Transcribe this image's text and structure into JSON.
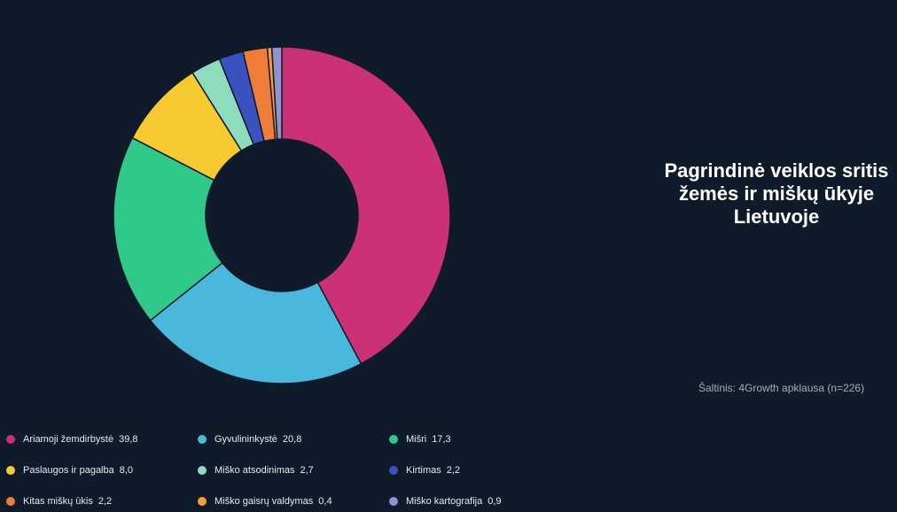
{
  "chart_data": {
    "type": "pie",
    "donut": true,
    "title": "Pagrindinė veiklos sritis žemės ir miškų ūkyje Lietuvoje",
    "source": "Šaltinis: 4Growth apklausa (n=226)",
    "legend_position": "bottom",
    "slices": [
      {
        "label": "Ariamoji žemdirbystė",
        "value": 39.8,
        "value_text": "39,8",
        "color": "#cc3176"
      },
      {
        "label": "Gyvulininkystė",
        "value": 20.8,
        "value_text": "20,8",
        "color": "#4ab8dc"
      },
      {
        "label": "Mišri",
        "value": 17.3,
        "value_text": "17,3",
        "color": "#2fc98a"
      },
      {
        "label": "Paslaugos ir pagalba",
        "value": 8.0,
        "value_text": "8,0",
        "color": "#f6c930"
      },
      {
        "label": "Miško atsodinimas",
        "value": 2.7,
        "value_text": "2,7",
        "color": "#8fdbbd"
      },
      {
        "label": "Kirtimas",
        "value": 2.2,
        "value_text": "2,2",
        "color": "#3a52c0"
      },
      {
        "label": "Kitas miškų ūkis",
        "value": 2.2,
        "value_text": "2,2",
        "color": "#f07c3a"
      },
      {
        "label": "Miško gaisrų valdymas",
        "value": 0.4,
        "value_text": "0,4",
        "color": "#f4a132"
      },
      {
        "label": "Miško kartografija",
        "value": 0.9,
        "value_text": "0,9",
        "color": "#9191d0"
      }
    ]
  }
}
